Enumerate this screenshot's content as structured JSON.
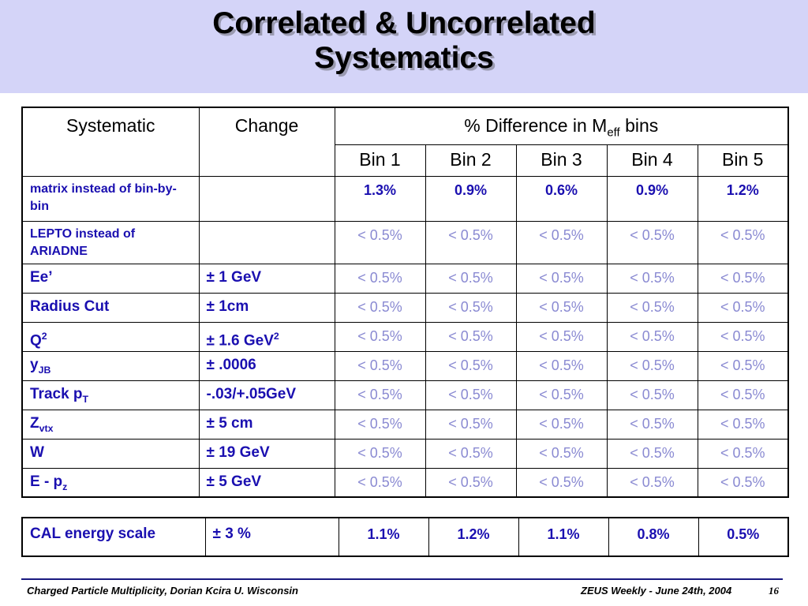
{
  "title": {
    "line1": "Correlated & Uncorrelated",
    "line2": "Systematics"
  },
  "table": {
    "header": {
      "systematic": "Systematic",
      "change": "Change",
      "difference_prefix": "% Difference in M",
      "difference_sub": "eff",
      "difference_suffix": " bins",
      "bins": [
        "Bin 1",
        "Bin 2",
        "Bin 3",
        "Bin 4",
        "Bin 5"
      ]
    },
    "rows": [
      {
        "systematic": "matrix instead of bin-by-bin",
        "change": "",
        "values": [
          "1.3%",
          "0.9%",
          "0.6%",
          "0.9%",
          "1.2%"
        ]
      },
      {
        "systematic": "LEPTO instead of ARIADNE",
        "change": "",
        "values": [
          "< 0.5%",
          "< 0.5%",
          "< 0.5%",
          "< 0.5%",
          "< 0.5%"
        ]
      },
      {
        "systematic": "Ee’",
        "change": "± 1 GeV",
        "values": [
          "< 0.5%",
          "< 0.5%",
          "< 0.5%",
          "< 0.5%",
          "< 0.5%"
        ]
      },
      {
        "systematic": "Radius Cut",
        "change": "± 1cm",
        "values": [
          "< 0.5%",
          "< 0.5%",
          "< 0.5%",
          "< 0.5%",
          "< 0.5%"
        ]
      },
      {
        "systematic_base": "Q",
        "systematic_sup": "2",
        "change_base": "± 1.6 GeV",
        "change_sup": "2",
        "values": [
          "< 0.5%",
          "< 0.5%",
          "< 0.5%",
          "< 0.5%",
          "< 0.5%"
        ]
      },
      {
        "systematic_base": "y",
        "systematic_sub": "JB",
        "change": "± .0006",
        "values": [
          "< 0.5%",
          "< 0.5%",
          "< 0.5%",
          "< 0.5%",
          "< 0.5%"
        ]
      },
      {
        "systematic_base": "Track p",
        "systematic_sub": "T",
        "change": "-.03/+.05GeV",
        "values": [
          "< 0.5%",
          "< 0.5%",
          "< 0.5%",
          "< 0.5%",
          "< 0.5%"
        ]
      },
      {
        "systematic_base": "Z",
        "systematic_sub": "vtx",
        "change": "± 5 cm",
        "values": [
          "< 0.5%",
          "< 0.5%",
          "< 0.5%",
          "< 0.5%",
          "< 0.5%"
        ]
      },
      {
        "systematic": "W",
        "change": "± 19 GeV",
        "values": [
          "< 0.5%",
          "< 0.5%",
          "< 0.5%",
          "< 0.5%",
          "< 0.5%"
        ]
      },
      {
        "systematic_base": "E - p",
        "systematic_sub": "z",
        "change": "± 5 GeV",
        "values": [
          "< 0.5%",
          "< 0.5%",
          "< 0.5%",
          "< 0.5%",
          "< 0.5%"
        ]
      }
    ]
  },
  "cal_table": {
    "systematic": "CAL energy scale",
    "change": "± 3 %",
    "values": [
      "1.1%",
      "1.2%",
      "1.1%",
      "0.8%",
      "0.5%"
    ]
  },
  "footer": {
    "left": "Charged Particle Multiplicity, Dorian Kcira U. Wisconsin",
    "right": "ZEUS Weekly - June 24th, 2004",
    "page": "16"
  },
  "colors": {
    "title_band": "#d4d4f8",
    "text_blue": "#1a0fb0",
    "muted_blue": "#8a8ad2",
    "footer_rule": "#1a1a80"
  }
}
